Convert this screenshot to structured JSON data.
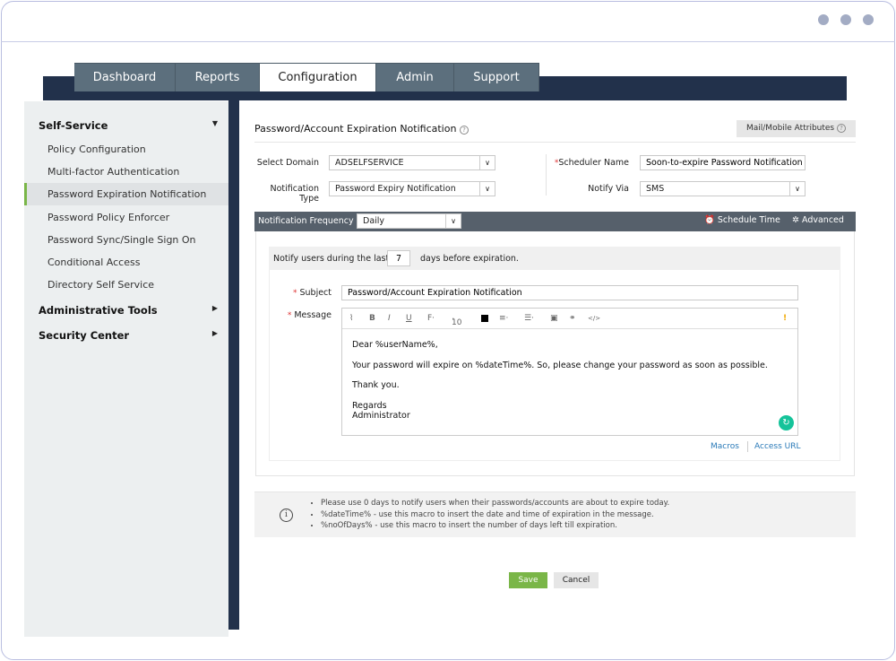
{
  "tabs": [
    {
      "label": "Dashboard"
    },
    {
      "label": "Reports"
    },
    {
      "label": "Configuration",
      "active": true
    },
    {
      "label": "Admin"
    },
    {
      "label": "Support"
    }
  ],
  "sidebar": {
    "sections": [
      {
        "label": "Self-Service",
        "expanded": true,
        "items": [
          {
            "label": "Policy Configuration"
          },
          {
            "label": "Multi-factor Authentication"
          },
          {
            "label": "Password Expiration Notification",
            "active": true
          },
          {
            "label": "Password Policy Enforcer"
          },
          {
            "label": "Password Sync/Single Sign On"
          },
          {
            "label": "Conditional Access"
          },
          {
            "label": "Directory Self Service"
          }
        ]
      },
      {
        "label": "Administrative Tools",
        "expanded": false
      },
      {
        "label": "Security Center",
        "expanded": false
      }
    ]
  },
  "page": {
    "title": "Password/Account Expiration Notification",
    "mail_mobile_button": "Mail/Mobile Attributes",
    "select_domain_label": "Select Domain",
    "select_domain_value": "ADSELFSERVICE",
    "notification_type_label": "Notification Type",
    "notification_type_value": "Password Expiry Notification",
    "scheduler_name_label": "Scheduler Name",
    "scheduler_name_value": "Soon-to-expire Password Notification Scl",
    "notify_via_label": "Notify Via",
    "notify_via_value": "SMS",
    "frequency_label": "Notification Frequency",
    "frequency_value": "Daily",
    "schedule_time": "Schedule Time",
    "advanced": "Advanced",
    "notify_prefix": "Notify users during the last",
    "notify_days": "7",
    "notify_suffix": "days before expiration.",
    "subject_label": "Subject",
    "subject_value": "Password/Account Expiration Notification",
    "message_label": "Message",
    "font_size": "10",
    "message_lines": [
      "Dear %userName%,",
      "Your password will expire on %dateTime%. So, please change your password as soon as possible.",
      "Thank you.",
      "Regards",
      "Administrator"
    ],
    "macros_link": "Macros",
    "access_url_link": "Access URL",
    "notes": [
      "Please use 0 days to notify users when their passwords/accounts are about to expire today.",
      "%dateTime% - use this macro to insert the date and time of expiration in the message.",
      "%noOfDays% - use this macro to insert the number of days left till expiration."
    ],
    "save": "Save",
    "cancel": "Cancel"
  },
  "colors": {
    "nav": "#22314b",
    "accent": "#7ab648",
    "save": "#7ab648",
    "link": "#2a7ab8"
  }
}
